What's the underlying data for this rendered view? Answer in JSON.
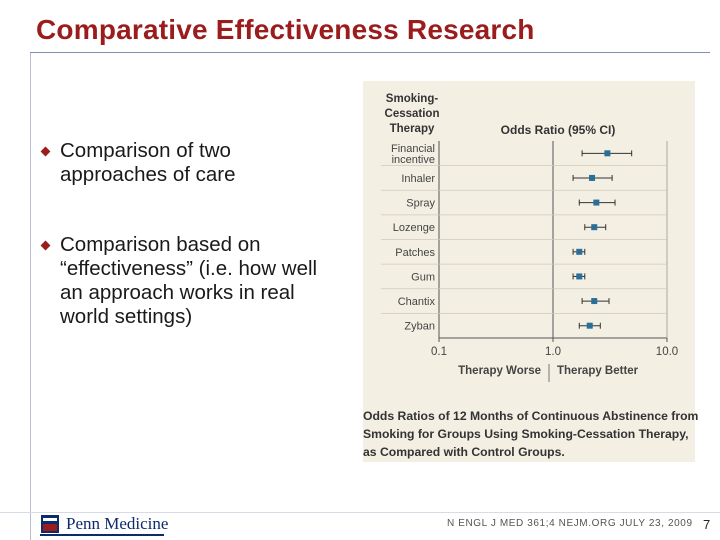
{
  "slide": {
    "title": "Comparative Effectiveness Research",
    "bullets": [
      "Comparison of two approaches of care",
      "Comparison based on “effectiveness” (i.e. how well an approach works in real world settings)"
    ]
  },
  "figure": {
    "header_line1": "Smoking-",
    "header_line2": "Cessation",
    "header_line3": "Therapy",
    "odds_ratio_header": "Odds Ratio (95% CI)",
    "caption": "Odds Ratios of 12 Months of Continuous Abstinence from Smoking for Groups Using Smoking-Cessation Therapy, as Compared with Control Groups.",
    "background_color": "#f3efe3",
    "marker_color": "#2a6f97"
  },
  "chart_data": {
    "type": "forest",
    "x_scale": "log",
    "xlim": [
      0.1,
      10.0
    ],
    "x_ticks": [
      "0.1",
      "1.0",
      "10.0"
    ],
    "x_direction_labels": [
      "Therapy Worse",
      "Therapy Better"
    ],
    "rows": [
      {
        "label": "Financial incentive",
        "label_lines": [
          "Financial",
          "incentive"
        ],
        "or": 3.0,
        "ci_low": 1.8,
        "ci_high": 4.9
      },
      {
        "label": "Inhaler",
        "label_lines": [
          "Inhaler"
        ],
        "or": 2.2,
        "ci_low": 1.5,
        "ci_high": 3.3
      },
      {
        "label": "Spray",
        "label_lines": [
          "Spray"
        ],
        "or": 2.4,
        "ci_low": 1.7,
        "ci_high": 3.5
      },
      {
        "label": "Lozenge",
        "label_lines": [
          "Lozenge"
        ],
        "or": 2.3,
        "ci_low": 1.9,
        "ci_high": 2.9
      },
      {
        "label": "Patches",
        "label_lines": [
          "Patches"
        ],
        "or": 1.7,
        "ci_low": 1.5,
        "ci_high": 1.9
      },
      {
        "label": "Gum",
        "label_lines": [
          "Gum"
        ],
        "or": 1.7,
        "ci_low": 1.5,
        "ci_high": 1.9
      },
      {
        "label": "Chantix",
        "label_lines": [
          "Chantix"
        ],
        "or": 2.3,
        "ci_low": 1.8,
        "ci_high": 3.1
      },
      {
        "label": "Zyban",
        "label_lines": [
          "Zyban"
        ],
        "or": 2.1,
        "ci_low": 1.7,
        "ci_high": 2.6
      }
    ]
  },
  "footer": {
    "logo_text": "Penn Medicine",
    "citation": "N ENGL J MED 361;4   NEJM.ORG   JULY 23, 2009",
    "page_number": "7"
  }
}
